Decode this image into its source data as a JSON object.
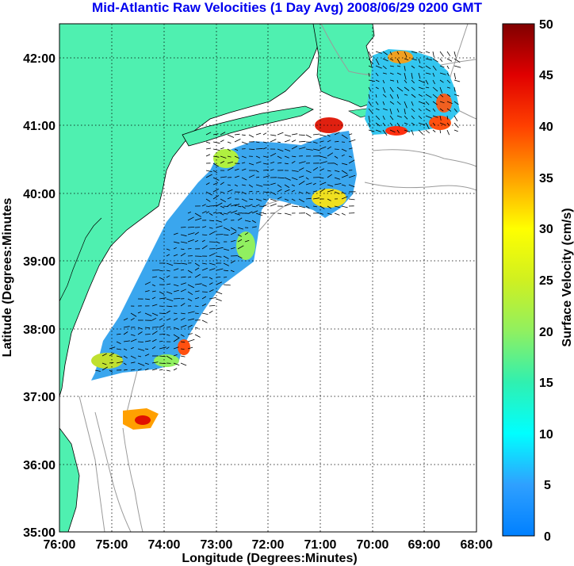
{
  "title": "Mid-Atlantic Raw Velocities (1 Day Avg) 2008/06/29 0200 GMT",
  "xlabel": "Longitude (Degrees:Minutes)",
  "ylabel": "Latitude (Degrees:Minutes",
  "colorbar_label": "Surface Velocity (cm/s)",
  "x_ticks": [
    "76:00",
    "75:00",
    "74:00",
    "73:00",
    "72:00",
    "71:00",
    "70:00",
    "69:00",
    "68:00"
  ],
  "y_ticks": [
    "42:00",
    "41:00",
    "40:00",
    "39:00",
    "38:00",
    "37:00",
    "36:00",
    "35:00"
  ],
  "colorbar_ticks": [
    "50",
    "45",
    "40",
    "35",
    "30",
    "25",
    "20",
    "15",
    "10",
    "5",
    "0"
  ],
  "colors": {
    "land": "#4ff0b0",
    "title": "#0000ee",
    "bathymetry": "#9a9a9a"
  },
  "map": {
    "lon_range": [
      -76,
      -68
    ],
    "lat_range": [
      35,
      42.5
    ],
    "grid": "dotted",
    "colormap": "jet",
    "colorbar_range_cm_s": [
      0,
      50
    ]
  }
}
